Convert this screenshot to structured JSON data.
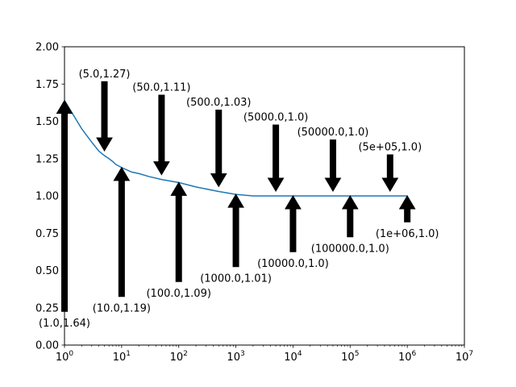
{
  "chart_data": {
    "type": "line",
    "xscale": "log",
    "xlim": [
      1,
      10000000
    ],
    "ylim": [
      0,
      2
    ],
    "xticks": [
      {
        "value": 1,
        "base": "10",
        "exp": "0"
      },
      {
        "value": 10,
        "base": "10",
        "exp": "1"
      },
      {
        "value": 100,
        "base": "10",
        "exp": "2"
      },
      {
        "value": 1000,
        "base": "10",
        "exp": "3"
      },
      {
        "value": 10000,
        "base": "10",
        "exp": "4"
      },
      {
        "value": 100000,
        "base": "10",
        "exp": "5"
      },
      {
        "value": 1000000,
        "base": "10",
        "exp": "6"
      },
      {
        "value": 10000000,
        "base": "10",
        "exp": "7"
      }
    ],
    "yticks": [
      {
        "value": 0,
        "label": "0.00"
      },
      {
        "value": 0.25,
        "label": "0.25"
      },
      {
        "value": 0.5,
        "label": "0.50"
      },
      {
        "value": 0.75,
        "label": "0.75"
      },
      {
        "value": 1.0,
        "label": "1.00"
      },
      {
        "value": 1.25,
        "label": "1.25"
      },
      {
        "value": 1.5,
        "label": "1.50"
      },
      {
        "value": 1.75,
        "label": "1.75"
      },
      {
        "value": 2.0,
        "label": "2.00"
      }
    ],
    "series": [
      {
        "color": "#1f77b4",
        "x": [
          1,
          2,
          3,
          4,
          5,
          6,
          7,
          8,
          9,
          10,
          15,
          20,
          30,
          50,
          70,
          100,
          200,
          500,
          1000,
          2000,
          5000,
          10000,
          100000,
          1000000
        ],
        "y": [
          1.64,
          1.45,
          1.36,
          1.3,
          1.27,
          1.25,
          1.23,
          1.21,
          1.2,
          1.19,
          1.16,
          1.15,
          1.13,
          1.11,
          1.1,
          1.09,
          1.06,
          1.03,
          1.01,
          1.0,
          1.0,
          1.0,
          1.0,
          1.0
        ]
      }
    ],
    "annotations": [
      {
        "text": "(1.0,1.64)",
        "x": 1,
        "y": 1.64,
        "dir": "up",
        "text_y": 0.15
      },
      {
        "text": "(5.0,1.27)",
        "x": 5,
        "y": 1.27,
        "dir": "down",
        "text_y": 1.82
      },
      {
        "text": "(10.0,1.19)",
        "x": 10,
        "y": 1.19,
        "dir": "up",
        "text_y": 0.25
      },
      {
        "text": "(50.0,1.11)",
        "x": 50,
        "y": 1.11,
        "dir": "down",
        "text_y": 1.73
      },
      {
        "text": "(100.0,1.09)",
        "x": 100,
        "y": 1.09,
        "dir": "up",
        "text_y": 0.35
      },
      {
        "text": "(500.0,1.03)",
        "x": 500,
        "y": 1.03,
        "dir": "down",
        "text_y": 1.63
      },
      {
        "text": "(1000.0,1.01)",
        "x": 1000,
        "y": 1.01,
        "dir": "up",
        "text_y": 0.45
      },
      {
        "text": "(5000.0,1.0)",
        "x": 5000,
        "y": 1.0,
        "dir": "down",
        "text_y": 1.53
      },
      {
        "text": "(10000.0,1.0)",
        "x": 10000,
        "y": 1.0,
        "dir": "up",
        "text_y": 0.55
      },
      {
        "text": "(50000.0,1.0)",
        "x": 50000,
        "y": 1.0,
        "dir": "down",
        "text_y": 1.43
      },
      {
        "text": "(100000.0,1.0)",
        "x": 100000,
        "y": 1.0,
        "dir": "up",
        "text_y": 0.65
      },
      {
        "text": "(5e+05,1.0)",
        "x": 500000,
        "y": 1.0,
        "dir": "down",
        "text_y": 1.33
      },
      {
        "text": "(1e+06,1.0)",
        "x": 1000000,
        "y": 1.0,
        "dir": "up",
        "text_y": 0.75
      }
    ]
  }
}
